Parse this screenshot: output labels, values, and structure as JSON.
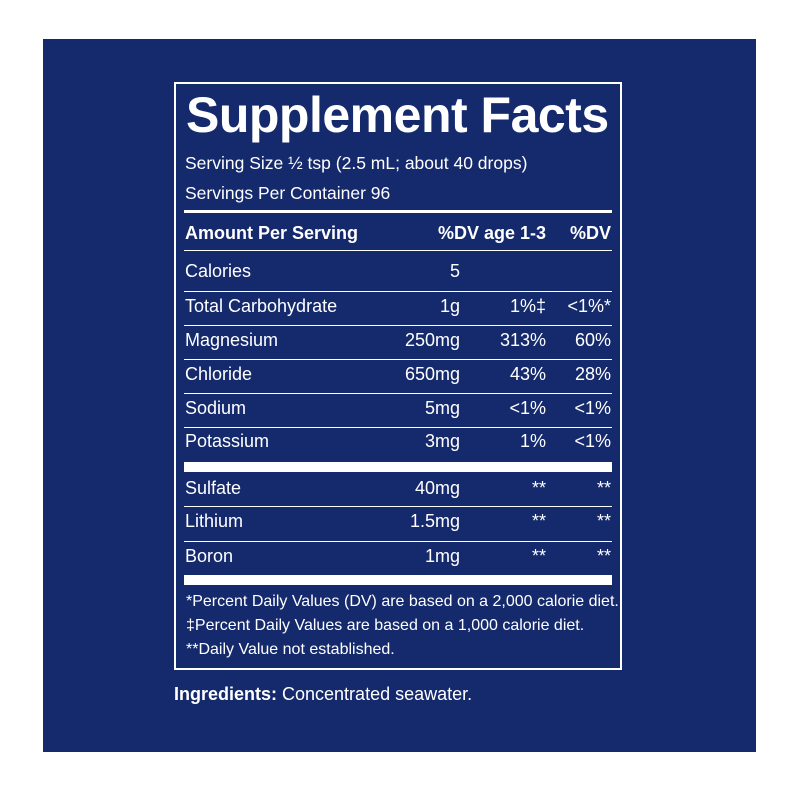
{
  "label": {
    "title": "Supplement Facts",
    "serving_size": "Serving Size ½ tsp (2.5 mL; about 40 drops)",
    "servings_per_container": "Servings Per Container 96",
    "header": {
      "amount_per_serving": "Amount Per Serving",
      "dv_age": "%DV age 1-3",
      "dv": "%DV"
    },
    "rows": [
      {
        "name": "Calories",
        "amount": "5",
        "dv_age": "",
        "dv": ""
      },
      {
        "name": "Total Carbohydrate",
        "amount": "1g",
        "dv_age": "1%‡",
        "dv": "<1%*"
      },
      {
        "name": "Magnesium",
        "amount": "250mg",
        "dv_age": "313%",
        "dv": "60%"
      },
      {
        "name": "Chloride",
        "amount": "650mg",
        "dv_age": "43%",
        "dv": "28%"
      },
      {
        "name": "Sodium",
        "amount": "5mg",
        "dv_age": "<1%",
        "dv": "<1%"
      },
      {
        "name": "Potassium",
        "amount": "3mg",
        "dv_age": "1%",
        "dv": "<1%"
      },
      {
        "name": "Sulfate",
        "amount": "40mg",
        "dv_age": "**",
        "dv": "**"
      },
      {
        "name": "Lithium",
        "amount": "1.5mg",
        "dv_age": "**",
        "dv": "**"
      },
      {
        "name": "Boron",
        "amount": "1mg",
        "dv_age": "**",
        "dv": "**"
      }
    ],
    "footnotes": [
      "*Percent Daily Values (DV) are based on a 2,000 calorie diet.",
      "‡Percent Daily Values are based on a 1,000 calorie diet.",
      "**Daily Value not established."
    ]
  },
  "ingredients": {
    "label": "Ingredients:",
    "text": " Concentrated seawater."
  },
  "colors": {
    "background": "#152a6d",
    "foreground": "#ffffff"
  }
}
